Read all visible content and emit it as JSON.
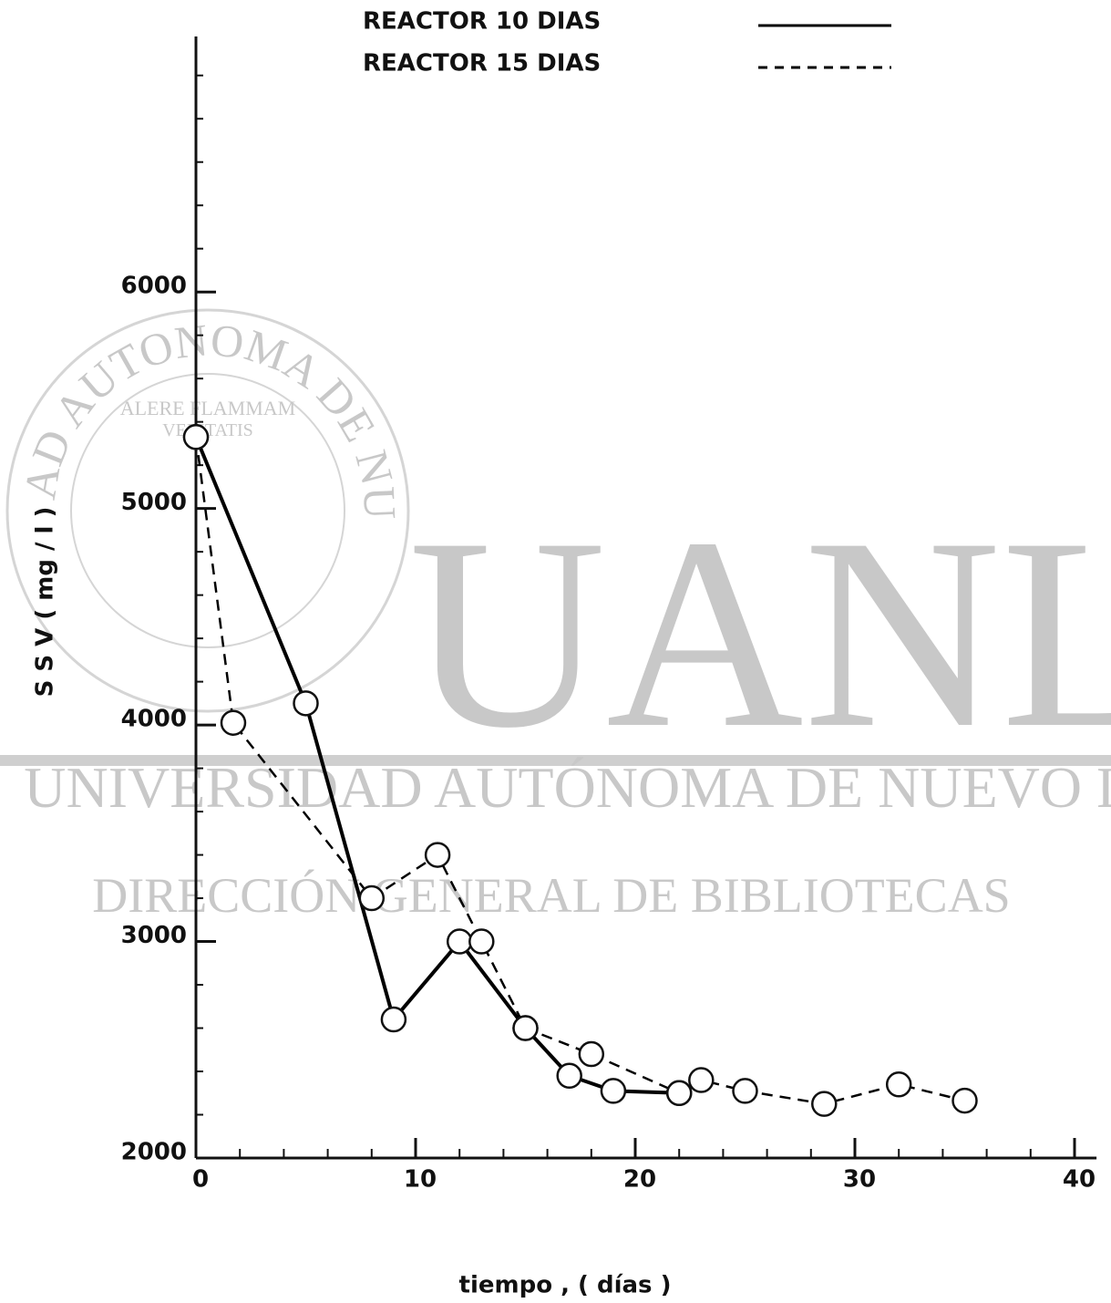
{
  "chart_data": {
    "type": "line",
    "x_label": "tiempo , ( días )",
    "y_label": "S S V   ( mg / l )",
    "xlim": [
      0,
      41
    ],
    "xticks": [
      0,
      10,
      20,
      30,
      40
    ],
    "xminorticks": [
      2,
      4,
      6,
      8,
      12,
      14,
      16,
      18,
      22,
      24,
      26,
      28,
      32,
      34,
      36,
      38
    ],
    "ylim": [
      2000,
      7180
    ],
    "yticks": [
      2000,
      3000,
      4000,
      5000,
      6000
    ],
    "yminorticks": [
      2200,
      2400,
      2600,
      2800,
      3200,
      3400,
      3600,
      3800,
      4200,
      4400,
      4600,
      4800,
      5200,
      5400,
      5600,
      5800,
      6200,
      6400,
      6600,
      6800,
      7000
    ],
    "legend": "top",
    "series": [
      {
        "name": "REACTOR  10  DIAS",
        "color": "#000000",
        "dash": false,
        "x": [
          0,
          5,
          9,
          12,
          15,
          17,
          19,
          22
        ],
        "values": [
          5330,
          4100,
          2640,
          3000,
          2600,
          2380,
          2310,
          2300
        ]
      },
      {
        "name": "REACTOR  15  DIAS",
        "color": "#000000",
        "dash": true,
        "x": [
          0,
          1.7,
          8,
          11,
          13,
          15,
          18,
          22,
          23,
          25,
          28.6,
          32,
          35
        ],
        "values": [
          5330,
          4010,
          3200,
          3400,
          3000,
          2600,
          2480,
          2300,
          2360,
          2310,
          2250,
          2340,
          2265
        ]
      }
    ]
  },
  "watermark": {
    "logo": "UANL",
    "line1": "UNIVERSIDAD AUTÓNOMA DE NUEVO LEÓN",
    "line2": "DIRECCIÓN GENERAL DE BIBLIOTECAS",
    "seal_ring": "UNIVERSIDAD AUTONOMA DE NUEVO LEON",
    "seal_motto1": "ALERE FLAMMAM",
    "seal_motto2": "VERITATIS"
  }
}
